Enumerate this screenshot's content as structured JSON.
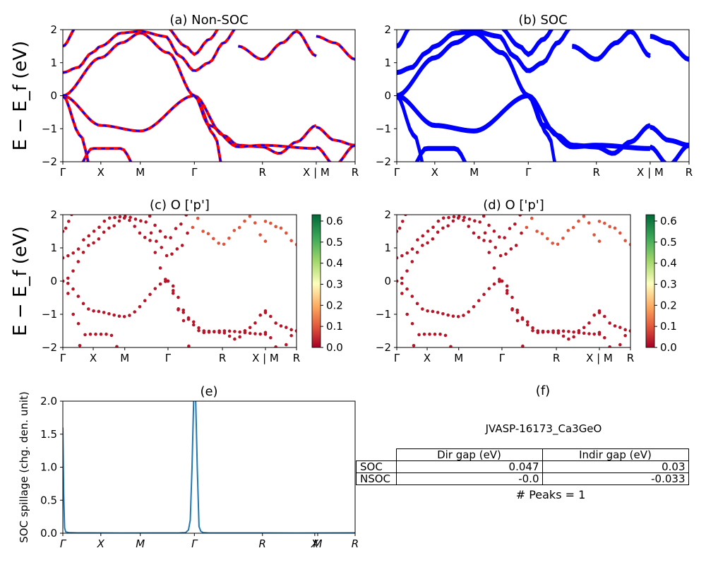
{
  "chart_data": [
    {
      "id": "a",
      "type": "line",
      "title": "(a) Non-SOC",
      "ylabel": "E − E_f (eV)",
      "ylim": [
        -2,
        2
      ],
      "yticks": [
        "2",
        "1",
        "0",
        "−1",
        "−2"
      ],
      "xticks": [
        "Γ",
        "X",
        "M",
        "Γ",
        "R",
        "X | M",
        "R"
      ],
      "tick_pos": [
        0,
        0.13,
        0.265,
        0.45,
        0.683,
        0.867,
        1.0
      ],
      "series": [
        {
          "color": "#ff0000",
          "style": "solid"
        },
        {
          "color": "#0000ff",
          "style": "dashed"
        }
      ]
    },
    {
      "id": "b",
      "type": "line",
      "title": "(b) SOC",
      "ylim": [
        -2,
        2
      ],
      "yticks": [
        "2",
        "1",
        "0",
        "−1",
        "−2"
      ],
      "xticks": [
        "Γ",
        "X",
        "M",
        "Γ",
        "R",
        "X | M",
        "R"
      ],
      "tick_pos": [
        0,
        0.13,
        0.265,
        0.45,
        0.683,
        0.867,
        1.0
      ],
      "series": [
        {
          "color": "#0000ff",
          "style": "solid"
        }
      ]
    },
    {
      "id": "c",
      "type": "scatter",
      "title": "(c)  O ['p']",
      "ylabel": "E − E_f (eV)",
      "ylim": [
        -2,
        2
      ],
      "yticks": [
        "2",
        "1",
        "0",
        "−1",
        "−2"
      ],
      "xticks": [
        "Γ",
        "X",
        "M",
        "Γ",
        "R",
        "X | M",
        "R"
      ],
      "tick_pos": [
        0,
        0.13,
        0.265,
        0.45,
        0.683,
        0.867,
        1.0
      ],
      "colorbar": {
        "ticks": [
          "0.0",
          "0.1",
          "0.2",
          "0.3",
          "0.4",
          "0.5",
          "0.6"
        ],
        "range": [
          0,
          0.63
        ],
        "colormap": "RdYlGn"
      }
    },
    {
      "id": "d",
      "type": "scatter",
      "title": "(d) O ['p']",
      "ylim": [
        -2,
        2
      ],
      "yticks": [
        "2",
        "1",
        "0",
        "−1",
        "−2"
      ],
      "xticks": [
        "Γ",
        "X",
        "M",
        "Γ",
        "R",
        "X | M",
        "R"
      ],
      "tick_pos": [
        0,
        0.13,
        0.265,
        0.45,
        0.683,
        0.867,
        1.0
      ],
      "colorbar": {
        "ticks": [
          "0.0",
          "0.1",
          "0.2",
          "0.3",
          "0.4",
          "0.5",
          "0.6"
        ],
        "range": [
          0,
          0.63
        ],
        "colormap": "RdYlGn"
      }
    },
    {
      "id": "e",
      "type": "line",
      "title": "(e)",
      "ylabel": "SOC spillage (chg. den. unit)",
      "ylim": [
        0,
        2.0
      ],
      "yticks": [
        "2.0",
        "1.5",
        "1.0",
        "0.5",
        "0.0"
      ],
      "xticks": [
        "Γ",
        "X",
        "M",
        "Γ",
        "R",
        "X",
        "M",
        "R"
      ],
      "tick_pos": [
        0,
        0.13,
        0.265,
        0.45,
        0.683,
        0.862,
        0.872,
        1.0
      ],
      "series": [
        {
          "color": "#1f77b4",
          "x": [
            0,
            0.003,
            0.006,
            0.01,
            0.02,
            0.05,
            0.2,
            0.4,
            0.42,
            0.43,
            0.436,
            0.442,
            0.448,
            0.454,
            0.46,
            0.466,
            0.472,
            0.48,
            0.5,
            0.8,
            1.0
          ],
          "y": [
            1.6,
            0.6,
            0.08,
            0.02,
            0.01,
            0.005,
            0.003,
            0.005,
            0.01,
            0.05,
            0.2,
            1.0,
            2.1,
            2.1,
            1.0,
            0.1,
            0.03,
            0.01,
            0.004,
            0.003,
            0.005
          ]
        }
      ]
    },
    {
      "id": "f",
      "type": "table",
      "title": "(f)",
      "name": "JVASP-16173_Ca3GeO",
      "columns": [
        "Dir gap (eV)",
        "Indir gap (eV)"
      ],
      "rows": [
        {
          "label": "SOC",
          "values": [
            "0.047",
            "0.03"
          ]
        },
        {
          "label": "NSOC",
          "values": [
            "-0.0",
            "-0.033"
          ]
        }
      ],
      "peaks": "# Peaks = 1"
    }
  ]
}
